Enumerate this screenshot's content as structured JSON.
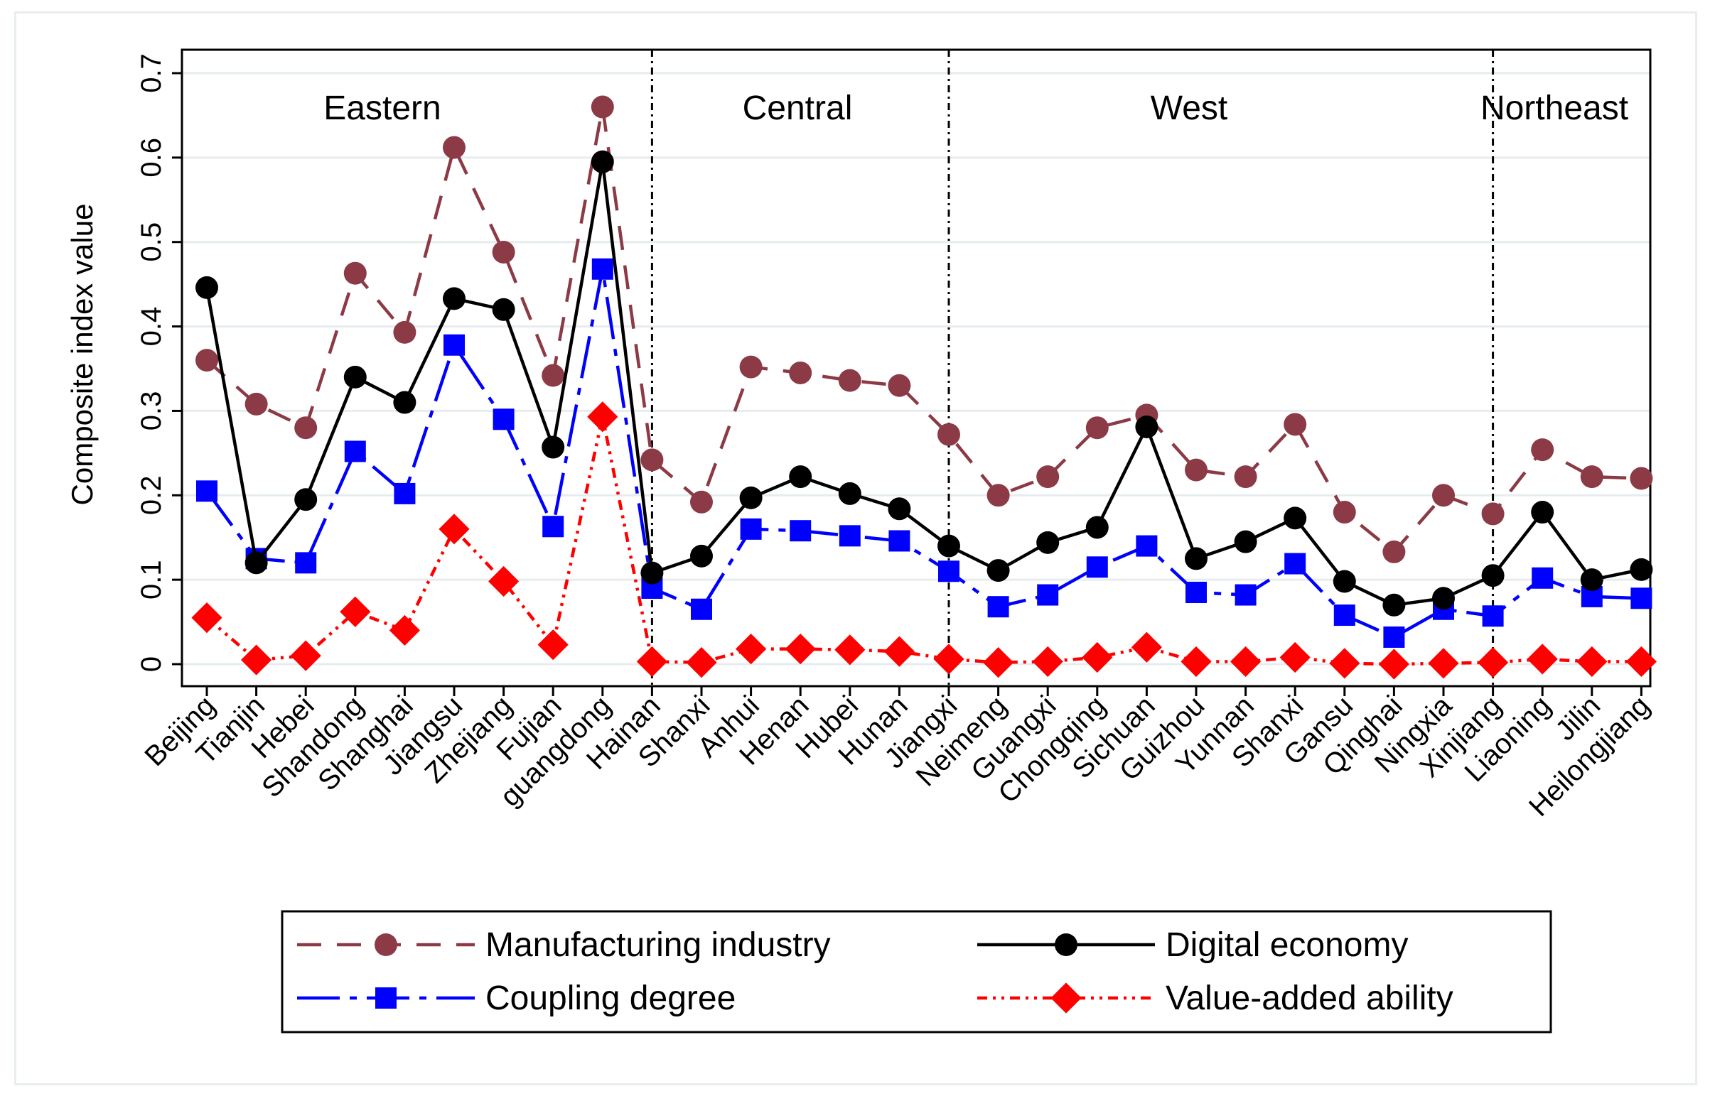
{
  "chart_data": {
    "type": "line",
    "title": "",
    "xlabel": "",
    "ylabel": "Composite index value",
    "ylim": [
      0,
      0.7
    ],
    "yticks": [
      0,
      0.1,
      0.2,
      0.3,
      0.4,
      0.5,
      0.6,
      0.7
    ],
    "ytick_labels": [
      "0",
      "0.1",
      "0.2",
      "0.3",
      "0.4",
      "0.5",
      "0.6",
      "0.7"
    ],
    "grid": true,
    "legend_position": "bottom",
    "categories": [
      "Beijing",
      "Tianjin",
      "Hebei",
      "Shandong",
      "Shanghai",
      "Jiangsu",
      "Zhejiang",
      "Fujian",
      "guangdong",
      "Hainan",
      "Shanxi",
      "Anhui",
      "Henan",
      "Hubei",
      "Hunan",
      "Jiangxi",
      "Neimeng",
      "Guangxi",
      "Chongqing",
      "Sichuan",
      "Guizhou",
      "Yunnan",
      "Shanxi",
      "Gansu",
      "Qinghai",
      "Ningxia",
      "Xinjiang",
      "Liaoning",
      "Jilin",
      "Heilongjiang"
    ],
    "regions": [
      {
        "name": "Eastern",
        "start": 0,
        "end": 9
      },
      {
        "name": "Central",
        "start": 9,
        "end": 15
      },
      {
        "name": "West",
        "start": 15,
        "end": 26
      },
      {
        "name": "Northeast",
        "start": 26,
        "end": 29
      }
    ],
    "dividers_at": [
      9,
      15,
      26
    ],
    "series": [
      {
        "name": "Manufacturing industry",
        "color": "#8b3a46",
        "marker": "circle",
        "dash": "dashed",
        "values": [
          0.36,
          0.308,
          0.28,
          0.463,
          0.393,
          0.612,
          0.488,
          0.342,
          0.66,
          0.242,
          0.192,
          0.352,
          0.345,
          0.336,
          0.33,
          0.272,
          0.2,
          0.222,
          0.28,
          0.295,
          0.23,
          0.222,
          0.284,
          0.18,
          0.133,
          0.2,
          0.178,
          0.254,
          0.222,
          0.22
        ]
      },
      {
        "name": "Digital economy",
        "color": "#000000",
        "marker": "circle",
        "dash": "solid",
        "values": [
          0.446,
          0.12,
          0.195,
          0.34,
          0.31,
          0.433,
          0.42,
          0.257,
          0.595,
          0.108,
          0.128,
          0.197,
          0.222,
          0.202,
          0.184,
          0.14,
          0.111,
          0.144,
          0.162,
          0.281,
          0.125,
          0.145,
          0.173,
          0.098,
          0.07,
          0.078,
          0.105,
          0.18,
          0.1,
          0.112
        ]
      },
      {
        "name": "Coupling degree",
        "color": "#0000ff",
        "marker": "square",
        "dash": "longdash-dot",
        "values": [
          0.205,
          0.125,
          0.12,
          0.252,
          0.202,
          0.378,
          0.29,
          0.163,
          0.468,
          0.09,
          0.065,
          0.16,
          0.158,
          0.152,
          0.146,
          0.11,
          0.068,
          0.082,
          0.115,
          0.14,
          0.085,
          0.082,
          0.119,
          0.058,
          0.032,
          0.065,
          0.057,
          0.102,
          0.08,
          0.078
        ]
      },
      {
        "name": "Value-added ability",
        "color": "#ff0000",
        "marker": "diamond",
        "dash": "dash-dot-dot",
        "values": [
          0.055,
          0.005,
          0.01,
          0.062,
          0.04,
          0.16,
          0.098,
          0.023,
          0.293,
          0.003,
          0.002,
          0.018,
          0.018,
          0.017,
          0.015,
          0.006,
          0.002,
          0.003,
          0.008,
          0.02,
          0.003,
          0.003,
          0.008,
          0.001,
          0.0,
          0.001,
          0.002,
          0.006,
          0.003,
          0.003
        ]
      }
    ],
    "legend": [
      {
        "label": "Manufacturing industry",
        "series": 0
      },
      {
        "label": "Digital economy",
        "series": 1
      },
      {
        "label": "Coupling degree",
        "series": 2
      },
      {
        "label": "Value-added ability",
        "series": 3
      }
    ]
  }
}
